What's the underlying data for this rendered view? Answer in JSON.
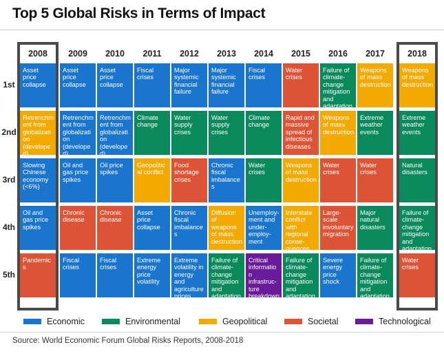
{
  "chart_data": {
    "type": "table",
    "title": "Top 5 Global Risks in Terms of Impact",
    "columns": [
      "2008",
      "2009",
      "2010",
      "2011",
      "2012",
      "2013",
      "2014",
      "2015",
      "2016",
      "2017",
      "2018"
    ],
    "rows": [
      "1st",
      "2nd",
      "3rd",
      "4th",
      "5th"
    ],
    "highlighted_columns": [
      "2008",
      "2018"
    ],
    "categories": [
      {
        "key": "economic",
        "label": "Economic",
        "color": "#1a75cf"
      },
      {
        "key": "environmental",
        "label": "Environmental",
        "color": "#0a8a5c"
      },
      {
        "key": "geopolitical",
        "label": "Geopolitical",
        "color": "#f2a900"
      },
      {
        "key": "societal",
        "label": "Societal",
        "color": "#dd5336"
      },
      {
        "key": "technological",
        "label": "Technological",
        "color": "#6a1b9a"
      }
    ],
    "cells": [
      [
        {
          "text": "Asset price collapse",
          "cat": "economic"
        },
        {
          "text": "Asset price collapse",
          "cat": "economic"
        },
        {
          "text": "Asset price collapse",
          "cat": "economic"
        },
        {
          "text": "Fiscal crises",
          "cat": "economic"
        },
        {
          "text": "Major systemic financial failure",
          "cat": "economic"
        },
        {
          "text": "Major systemic financial failure",
          "cat": "economic"
        },
        {
          "text": "Fiscal crises",
          "cat": "economic"
        },
        {
          "text": "Water crises",
          "cat": "societal"
        },
        {
          "text": "Failure of climate-change mitigation and adaptation",
          "cat": "environmental"
        },
        {
          "text": "Weapons of mass destruction",
          "cat": "geopolitical"
        },
        {
          "text": "Weapons of mass destruction",
          "cat": "geopolitical"
        }
      ],
      [
        {
          "text": "Retrenchment from globalization (developed)",
          "cat": "geopolitical"
        },
        {
          "text": "Retrenchment from globalization (developed)",
          "cat": "economic"
        },
        {
          "text": "Retrenchment from globalization (developed)",
          "cat": "economic"
        },
        {
          "text": "Climate change",
          "cat": "environmental"
        },
        {
          "text": "Water supply crises",
          "cat": "environmental"
        },
        {
          "text": "Water supply crises",
          "cat": "environmental"
        },
        {
          "text": "Climate change",
          "cat": "environmental"
        },
        {
          "text": "Rapid and massive spread of infectious diseases",
          "cat": "societal"
        },
        {
          "text": "Weapons of mass destruction",
          "cat": "geopolitical"
        },
        {
          "text": "Extreme weather events",
          "cat": "environmental"
        },
        {
          "text": "Extreme weather events",
          "cat": "environmental"
        }
      ],
      [
        {
          "text": "Slowing Chinese economy (<6%)",
          "cat": "economic"
        },
        {
          "text": "Oil and gas price spikes",
          "cat": "economic"
        },
        {
          "text": "Oil price spikes",
          "cat": "economic"
        },
        {
          "text": "Geopolitical conflict",
          "cat": "geopolitical"
        },
        {
          "text": "Food shortage crises",
          "cat": "societal"
        },
        {
          "text": "Chronic fiscal imbalances",
          "cat": "economic"
        },
        {
          "text": "Water crises",
          "cat": "environmental"
        },
        {
          "text": "Weapons of mass destruction",
          "cat": "geopolitical"
        },
        {
          "text": "Water crises",
          "cat": "societal"
        },
        {
          "text": "Water crises",
          "cat": "societal"
        },
        {
          "text": "Natural disasters",
          "cat": "environmental"
        }
      ],
      [
        {
          "text": "Oil and gas price spikes",
          "cat": "economic"
        },
        {
          "text": "Chronic disease",
          "cat": "societal"
        },
        {
          "text": "Chronic disease",
          "cat": "societal"
        },
        {
          "text": "Asset price collapse",
          "cat": "economic"
        },
        {
          "text": "Chronic fiscal imbalances",
          "cat": "economic"
        },
        {
          "text": "Diffusion of weapons of mass destruction",
          "cat": "geopolitical"
        },
        {
          "text": "Unemploy-ment and under-employ-ment",
          "cat": "economic"
        },
        {
          "text": "Interstate conflict with regional conse-quences",
          "cat": "geopolitical"
        },
        {
          "text": "Large-scale involuntary migration",
          "cat": "societal"
        },
        {
          "text": "Major natural disasters",
          "cat": "environmental"
        },
        {
          "text": "Failure of climate-change mitigation and adaptation",
          "cat": "environmental"
        }
      ],
      [
        {
          "text": "Pandemics",
          "cat": "societal"
        },
        {
          "text": "Fiscal crises",
          "cat": "economic"
        },
        {
          "text": "Fiscal crises",
          "cat": "economic"
        },
        {
          "text": "Extreme energy price volatility",
          "cat": "economic"
        },
        {
          "text": "Extreme volatility in energy and agriculture prices",
          "cat": "economic"
        },
        {
          "text": "Failure of climate-change mitigation and adaptation",
          "cat": "environmental"
        },
        {
          "text": "Critical information infrastruc-ture breakdown",
          "cat": "technological"
        },
        {
          "text": "Failure of climate-change mitigation and adaptation",
          "cat": "environmental"
        },
        {
          "text": "Severe energy price shock",
          "cat": "economic"
        },
        {
          "text": "Failure of climate-change mitigation and adaptation",
          "cat": "environmental"
        },
        {
          "text": "Water crises",
          "cat": "societal"
        }
      ]
    ],
    "source": "Source: World Economic Forum Global Risks Reports, 2008-2018"
  }
}
